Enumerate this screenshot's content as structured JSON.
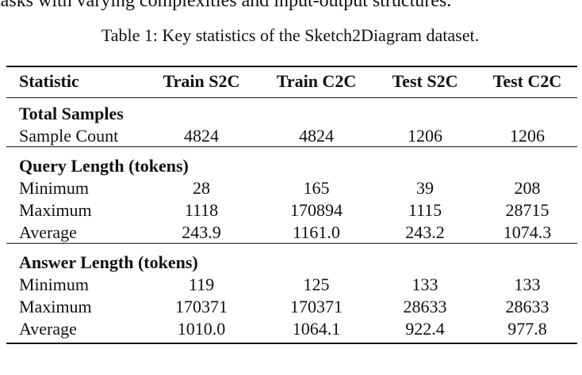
{
  "intro_text": "tasks with varying complexities and input-output structures.",
  "caption": "Table 1: Key statistics of the Sketch2Diagram dataset.",
  "table": {
    "columns": [
      "Statistic",
      "Train S2C",
      "Train C2C",
      "Test S2C",
      "Test C2C"
    ],
    "sections": [
      {
        "title": "Total Samples",
        "rows": [
          [
            "Sample Count",
            "4824",
            "4824",
            "1206",
            "1206"
          ]
        ]
      },
      {
        "title": "Query Length (tokens)",
        "rows": [
          [
            "Minimum",
            "28",
            "165",
            "39",
            "208"
          ],
          [
            "Maximum",
            "1118",
            "170894",
            "1115",
            "28715"
          ],
          [
            "Average",
            "243.9",
            "1161.0",
            "243.2",
            "1074.3"
          ]
        ]
      },
      {
        "title": "Answer Length (tokens)",
        "rows": [
          [
            "Minimum",
            "119",
            "125",
            "133",
            "133"
          ],
          [
            "Maximum",
            "170371",
            "170371",
            "28633",
            "28633"
          ],
          [
            "Average",
            "1010.0",
            "1064.1",
            "922.4",
            "977.8"
          ]
        ]
      }
    ]
  }
}
